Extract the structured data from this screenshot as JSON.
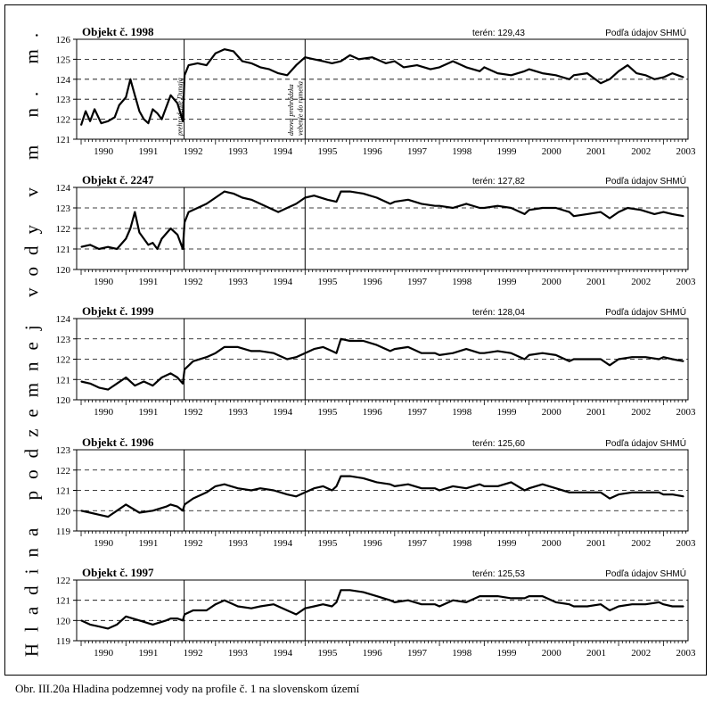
{
  "page": {
    "ylabel": "Hladina podzemnej vody v m n. m.",
    "caption": "Obr.  III.20a  Hladina podzemnej vody na profile č. 1 na slovenskom území"
  },
  "events": [
    {
      "x": 1992.3,
      "label": "prehradenie Dunaja"
    },
    {
      "x": 1994.93,
      "label": "dnova prehrádzka"
    },
    {
      "x": 1995.0,
      "label": "vebenie do rameňa"
    }
  ],
  "chart_data": [
    {
      "type": "line",
      "title": "Objekt č. 1998",
      "terrain": "terén: 129,43",
      "source": "Podľa údajov SHMÚ",
      "xlim": [
        1989.9,
        2003.55
      ],
      "ylim": [
        121,
        126
      ],
      "xticks": [
        1990,
        1991,
        1992,
        1993,
        1994,
        1995,
        1996,
        1997,
        1998,
        1999,
        2000,
        2001,
        2002,
        2003
      ],
      "yticks": [
        121,
        122,
        123,
        124,
        125,
        126
      ],
      "dashed": [
        122,
        123,
        124,
        125
      ],
      "x": [
        1990.0,
        1990.1,
        1990.2,
        1990.3,
        1990.45,
        1990.6,
        1990.75,
        1990.85,
        1991.0,
        1991.1,
        1991.2,
        1991.3,
        1991.4,
        1991.5,
        1991.6,
        1991.7,
        1991.8,
        1992.0,
        1992.15,
        1992.27,
        1992.31,
        1992.4,
        1992.6,
        1992.8,
        1993.0,
        1993.2,
        1993.4,
        1993.6,
        1993.8,
        1994.0,
        1994.2,
        1994.4,
        1994.6,
        1994.8,
        1995.0,
        1995.2,
        1995.4,
        1995.6,
        1995.8,
        1996.0,
        1996.2,
        1996.5,
        1996.8,
        1997.0,
        1997.2,
        1997.5,
        1997.8,
        1998.0,
        1998.3,
        1998.6,
        1998.9,
        1999.0,
        1999.3,
        1999.6,
        1999.9,
        2000.0,
        2000.3,
        2000.6,
        2000.9,
        2001.0,
        2001.3,
        2001.6,
        2001.8,
        2002.0,
        2002.2,
        2002.4,
        2002.6,
        2002.8,
        2003.0,
        2003.2,
        2003.45
      ],
      "y": [
        121.7,
        122.4,
        121.9,
        122.5,
        121.8,
        121.9,
        122.1,
        122.7,
        123.1,
        124.0,
        123.2,
        122.4,
        122.0,
        121.8,
        122.5,
        122.3,
        122.0,
        123.2,
        122.8,
        121.9,
        124.2,
        124.7,
        124.8,
        124.7,
        125.3,
        125.5,
        125.4,
        124.9,
        124.8,
        124.6,
        124.5,
        124.3,
        124.2,
        124.7,
        125.1,
        125.0,
        124.9,
        124.8,
        124.9,
        125.2,
        125.0,
        125.1,
        124.8,
        124.9,
        124.6,
        124.7,
        124.5,
        124.6,
        124.9,
        124.6,
        124.4,
        124.6,
        124.3,
        124.2,
        124.4,
        124.5,
        124.3,
        124.2,
        124.0,
        124.2,
        124.3,
        123.8,
        124.0,
        124.4,
        124.7,
        124.3,
        124.2,
        124.0,
        124.1,
        124.3,
        124.1
      ]
    },
    {
      "type": "line",
      "title": "Objekt č. 2247",
      "terrain": "terén: 127,82",
      "source": "Podľa údajov SHMÚ",
      "xlim": [
        1989.9,
        2003.55
      ],
      "ylim": [
        120,
        124
      ],
      "xticks": [
        1990,
        1991,
        1992,
        1993,
        1994,
        1995,
        1996,
        1997,
        1998,
        1999,
        2000,
        2001,
        2002,
        2003
      ],
      "yticks": [
        120,
        121,
        122,
        123,
        124
      ],
      "dashed": [
        121,
        122,
        123
      ],
      "x": [
        1990.0,
        1990.2,
        1990.4,
        1990.6,
        1990.8,
        1991.0,
        1991.1,
        1991.2,
        1991.3,
        1991.4,
        1991.5,
        1991.6,
        1991.7,
        1991.8,
        1992.0,
        1992.15,
        1992.27,
        1992.31,
        1992.4,
        1992.6,
        1992.8,
        1993.0,
        1993.2,
        1993.4,
        1993.6,
        1993.8,
        1994.0,
        1994.2,
        1994.4,
        1994.6,
        1994.8,
        1995.0,
        1995.2,
        1995.5,
        1995.7,
        1995.8,
        1996.0,
        1996.3,
        1996.6,
        1996.9,
        1997.0,
        1997.3,
        1997.6,
        1997.9,
        1998.0,
        1998.3,
        1998.6,
        1998.9,
        1999.0,
        1999.3,
        1999.6,
        1999.9,
        2000.0,
        2000.3,
        2000.6,
        2000.9,
        2001.0,
        2001.3,
        2001.6,
        2001.8,
        2002.0,
        2002.2,
        2002.5,
        2002.8,
        2003.0,
        2003.2,
        2003.45
      ],
      "y": [
        121.1,
        121.2,
        121.0,
        121.1,
        121.0,
        121.5,
        122.0,
        122.8,
        121.8,
        121.5,
        121.2,
        121.3,
        121.0,
        121.5,
        122.0,
        121.7,
        121.0,
        122.3,
        122.8,
        123.0,
        123.2,
        123.5,
        123.8,
        123.7,
        123.5,
        123.4,
        123.2,
        123.0,
        122.8,
        123.0,
        123.2,
        123.5,
        123.6,
        123.4,
        123.3,
        123.8,
        123.8,
        123.7,
        123.5,
        123.2,
        123.3,
        123.4,
        123.2,
        123.1,
        123.1,
        123.0,
        123.2,
        123.0,
        123.0,
        123.1,
        123.0,
        122.7,
        122.9,
        123.0,
        123.0,
        122.8,
        122.6,
        122.7,
        122.8,
        122.5,
        122.8,
        123.0,
        122.9,
        122.7,
        122.8,
        122.7,
        122.6
      ]
    },
    {
      "type": "line",
      "title": "Objekt č. 1999",
      "terrain": "terén: 128,04",
      "source": "Podľa údajov SHMÚ",
      "xlim": [
        1989.9,
        2003.55
      ],
      "ylim": [
        120,
        124
      ],
      "xticks": [
        1990,
        1991,
        1992,
        1993,
        1994,
        1995,
        1996,
        1997,
        1998,
        1999,
        2000,
        2001,
        2002,
        2003
      ],
      "yticks": [
        120,
        121,
        122,
        123,
        124
      ],
      "dashed": [
        121,
        122,
        123
      ],
      "x": [
        1990.0,
        1990.2,
        1990.4,
        1990.6,
        1990.8,
        1991.0,
        1991.2,
        1991.4,
        1991.6,
        1991.8,
        1992.0,
        1992.15,
        1992.27,
        1992.31,
        1992.5,
        1992.8,
        1993.0,
        1993.2,
        1993.5,
        1993.8,
        1994.0,
        1994.3,
        1994.6,
        1994.8,
        1995.0,
        1995.2,
        1995.4,
        1995.6,
        1995.7,
        1995.8,
        1996.0,
        1996.3,
        1996.6,
        1996.9,
        1997.0,
        1997.3,
        1997.6,
        1997.9,
        1998.0,
        1998.3,
        1998.6,
        1998.9,
        1999.0,
        1999.3,
        1999.6,
        1999.9,
        2000.0,
        2000.3,
        2000.6,
        2000.9,
        2001.0,
        2001.3,
        2001.6,
        2001.8,
        2002.0,
        2002.3,
        2002.6,
        2002.9,
        2003.0,
        2003.2,
        2003.45
      ],
      "y": [
        120.9,
        120.8,
        120.6,
        120.5,
        120.8,
        121.1,
        120.7,
        120.9,
        120.7,
        121.1,
        121.3,
        121.1,
        120.8,
        121.5,
        121.9,
        122.1,
        122.3,
        122.6,
        122.6,
        122.4,
        122.4,
        122.3,
        122.0,
        122.1,
        122.3,
        122.5,
        122.6,
        122.4,
        122.3,
        123.0,
        122.9,
        122.9,
        122.7,
        122.4,
        122.5,
        122.6,
        122.3,
        122.3,
        122.2,
        122.3,
        122.5,
        122.3,
        122.3,
        122.4,
        122.3,
        122.0,
        122.2,
        122.3,
        122.2,
        121.9,
        122.0,
        122.0,
        122.0,
        121.7,
        122.0,
        122.1,
        122.1,
        122.0,
        122.1,
        122.0,
        121.9
      ]
    },
    {
      "type": "line",
      "title": "Objekt č. 1996",
      "terrain": "terén: 125,60",
      "source": "Podľa údajov SHMÚ",
      "xlim": [
        1989.9,
        2003.55
      ],
      "ylim": [
        119,
        123
      ],
      "xticks": [
        1990,
        1991,
        1992,
        1993,
        1994,
        1995,
        1996,
        1997,
        1998,
        1999,
        2000,
        2001,
        2002,
        2003
      ],
      "yticks": [
        119,
        120,
        121,
        122,
        123
      ],
      "dashed": [
        120,
        121,
        122
      ],
      "x": [
        1990.0,
        1990.2,
        1990.4,
        1990.6,
        1990.8,
        1991.0,
        1991.3,
        1991.6,
        1991.9,
        1992.0,
        1992.15,
        1992.27,
        1992.31,
        1992.5,
        1992.8,
        1993.0,
        1993.2,
        1993.5,
        1993.8,
        1994.0,
        1994.3,
        1994.6,
        1994.8,
        1995.0,
        1995.2,
        1995.4,
        1995.6,
        1995.7,
        1995.8,
        1996.0,
        1996.3,
        1996.6,
        1996.9,
        1997.0,
        1997.3,
        1997.6,
        1997.9,
        1998.0,
        1998.3,
        1998.6,
        1998.9,
        1999.0,
        1999.3,
        1999.6,
        1999.9,
        2000.0,
        2000.3,
        2000.6,
        2000.9,
        2001.0,
        2001.3,
        2001.6,
        2001.8,
        2002.0,
        2002.3,
        2002.6,
        2002.9,
        2003.0,
        2003.2,
        2003.45
      ],
      "y": [
        120.0,
        119.9,
        119.8,
        119.7,
        120.0,
        120.3,
        119.9,
        120.0,
        120.2,
        120.3,
        120.2,
        120.0,
        120.3,
        120.6,
        120.9,
        121.2,
        121.3,
        121.1,
        121.0,
        121.1,
        121.0,
        120.8,
        120.7,
        120.9,
        121.1,
        121.2,
        121.0,
        121.2,
        121.7,
        121.7,
        121.6,
        121.4,
        121.3,
        121.2,
        121.3,
        121.1,
        121.1,
        121.0,
        121.2,
        121.1,
        121.3,
        121.2,
        121.2,
        121.4,
        121.0,
        121.1,
        121.3,
        121.1,
        120.9,
        120.9,
        120.9,
        120.9,
        120.6,
        120.8,
        120.9,
        120.9,
        120.9,
        120.8,
        120.8,
        120.7
      ]
    },
    {
      "type": "line",
      "title": "Objekt č. 1997",
      "terrain": "terén: 125,53",
      "source": "Podľa údajov SHMÚ",
      "xlim": [
        1989.9,
        2003.55
      ],
      "ylim": [
        119,
        122
      ],
      "xticks": [
        1990,
        1991,
        1992,
        1993,
        1994,
        1995,
        1996,
        1997,
        1998,
        1999,
        2000,
        2001,
        2002,
        2003
      ],
      "yticks": [
        119,
        120,
        121,
        122
      ],
      "dashed": [
        120,
        121
      ],
      "x": [
        1990.0,
        1990.2,
        1990.4,
        1990.6,
        1990.8,
        1991.0,
        1991.3,
        1991.6,
        1991.9,
        1992.0,
        1992.15,
        1992.27,
        1992.31,
        1992.5,
        1992.8,
        1993.0,
        1993.2,
        1993.5,
        1993.8,
        1994.0,
        1994.3,
        1994.6,
        1994.8,
        1995.0,
        1995.2,
        1995.4,
        1995.6,
        1995.7,
        1995.8,
        1996.0,
        1996.3,
        1996.6,
        1996.9,
        1997.0,
        1997.3,
        1997.6,
        1997.9,
        1998.0,
        1998.3,
        1998.6,
        1998.9,
        1999.0,
        1999.3,
        1999.6,
        1999.9,
        2000.0,
        2000.3,
        2000.6,
        2000.9,
        2001.0,
        2001.3,
        2001.6,
        2001.8,
        2002.0,
        2002.3,
        2002.6,
        2002.9,
        2003.0,
        2003.2,
        2003.45
      ],
      "y": [
        120.0,
        119.8,
        119.7,
        119.6,
        119.8,
        120.2,
        120.0,
        119.8,
        120.0,
        120.1,
        120.1,
        120.0,
        120.3,
        120.5,
        120.5,
        120.8,
        121.0,
        120.7,
        120.6,
        120.7,
        120.8,
        120.5,
        120.3,
        120.6,
        120.7,
        120.8,
        120.7,
        120.9,
        121.5,
        121.5,
        121.4,
        121.2,
        121.0,
        120.9,
        121.0,
        120.8,
        120.8,
        120.7,
        121.0,
        120.9,
        121.2,
        121.2,
        121.2,
        121.1,
        121.1,
        121.2,
        121.2,
        120.9,
        120.8,
        120.7,
        120.7,
        120.8,
        120.5,
        120.7,
        120.8,
        120.8,
        120.9,
        120.8,
        120.7,
        120.7
      ]
    }
  ]
}
